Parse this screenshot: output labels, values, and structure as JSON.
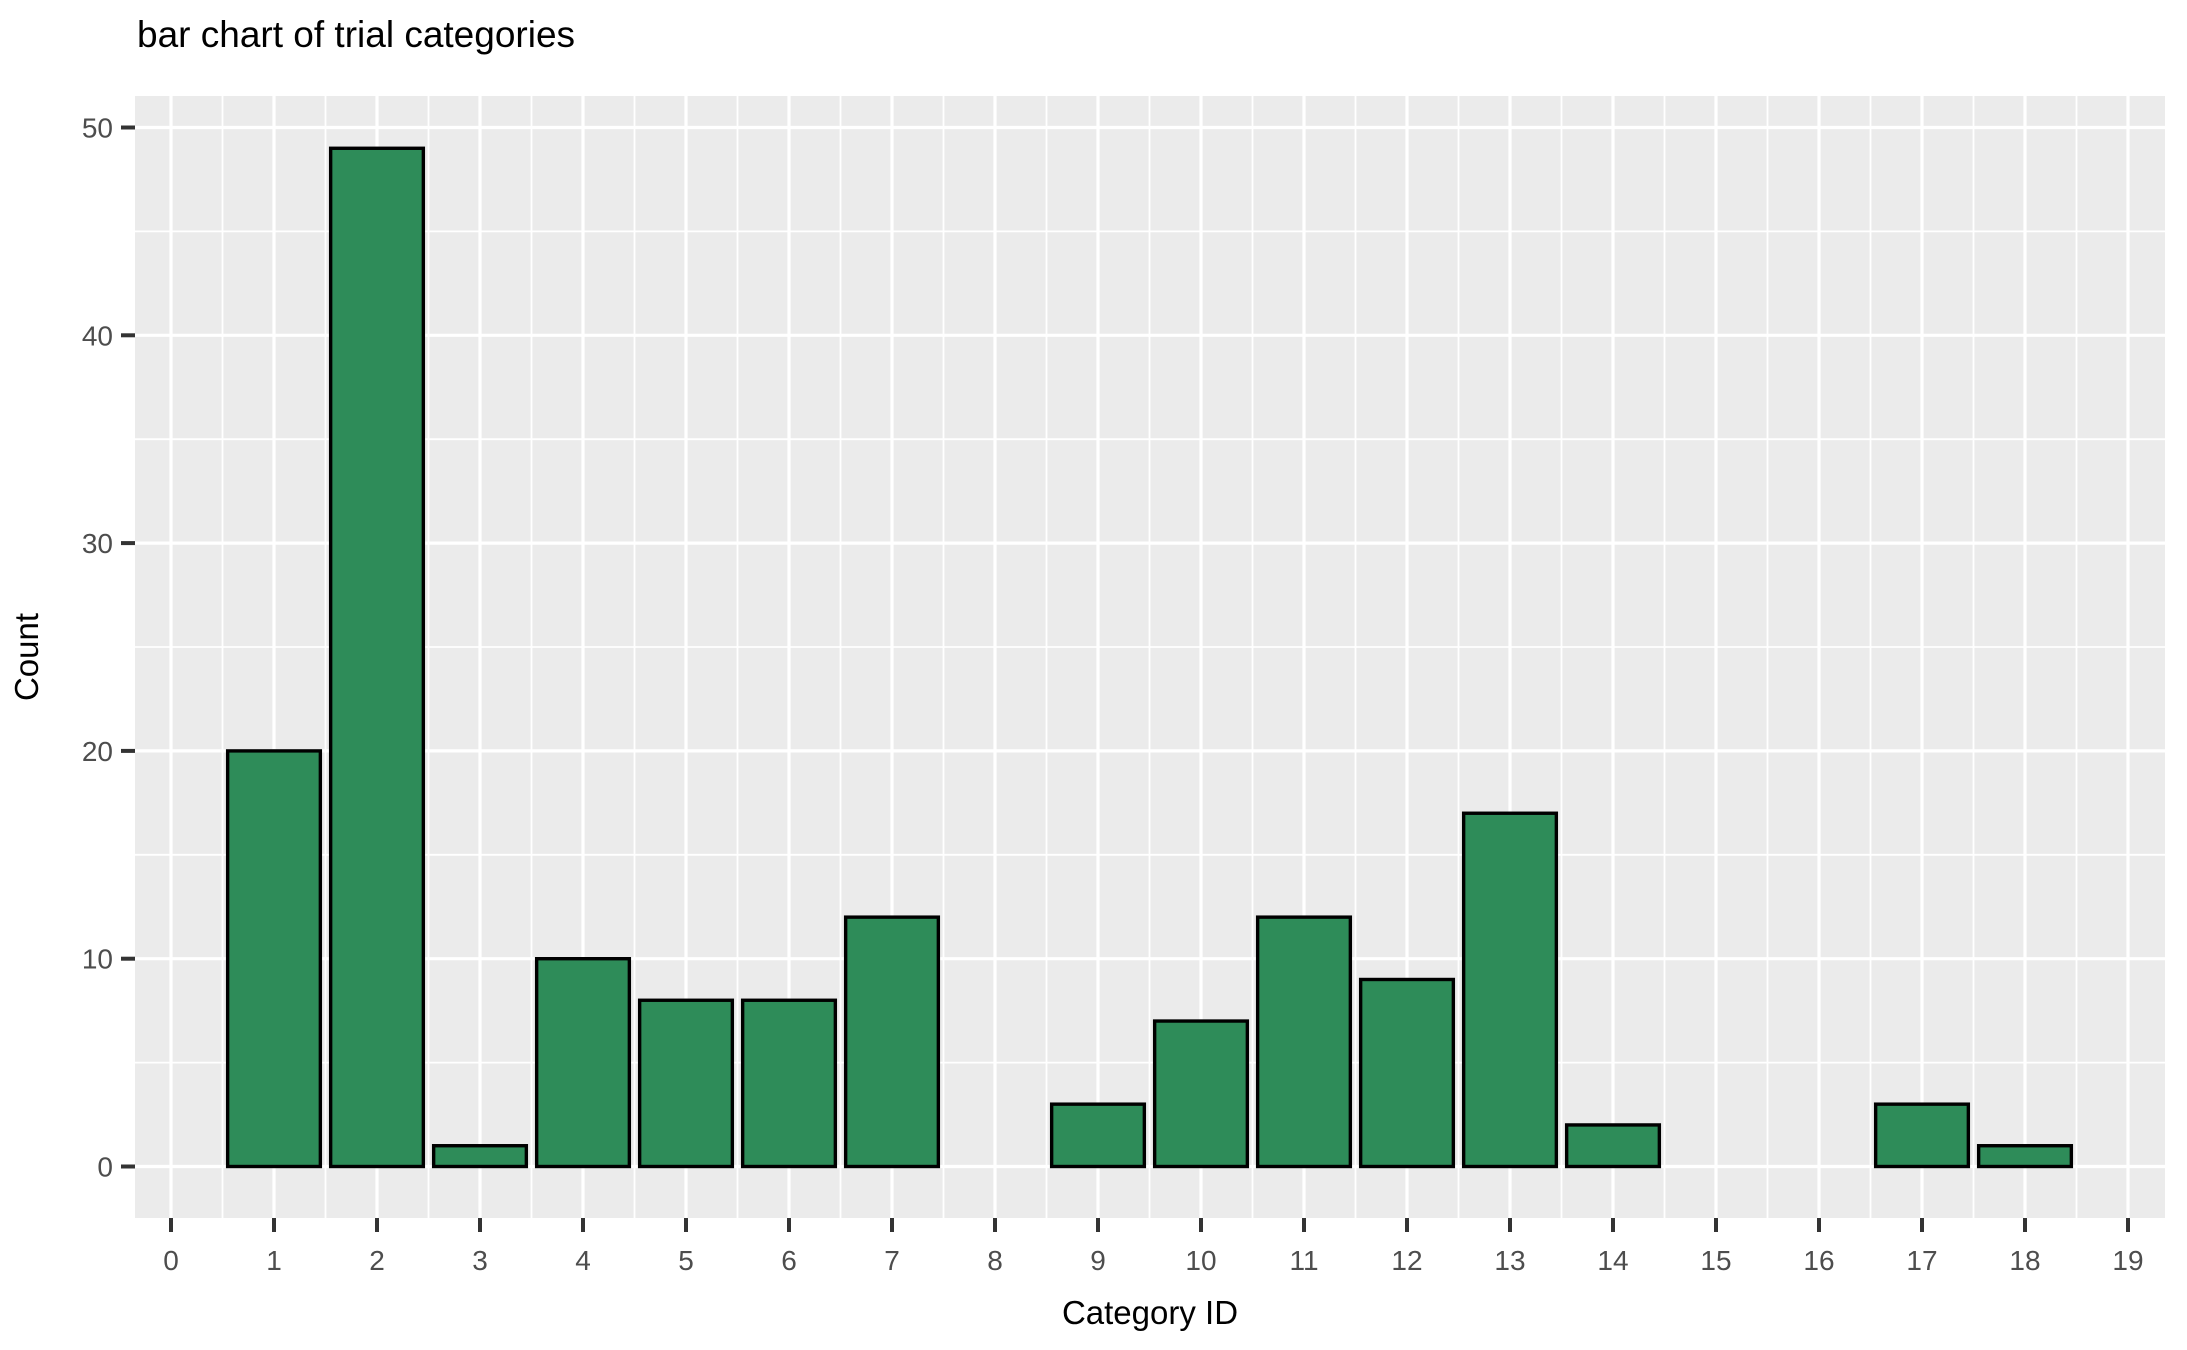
{
  "chart_data": {
    "type": "bar",
    "title": "bar chart of trial categories",
    "xlabel": "Category ID",
    "ylabel": "Count",
    "categories": [
      0,
      1,
      2,
      3,
      4,
      5,
      6,
      7,
      8,
      9,
      10,
      11,
      12,
      13,
      14,
      15,
      16,
      17,
      18,
      19
    ],
    "values": [
      0,
      20,
      49,
      1,
      10,
      8,
      8,
      12,
      0,
      3,
      7,
      12,
      9,
      17,
      2,
      0,
      0,
      3,
      1,
      0
    ],
    "x_ticks": [
      0,
      1,
      2,
      3,
      4,
      5,
      6,
      7,
      8,
      9,
      10,
      11,
      12,
      13,
      14,
      15,
      16,
      17,
      18,
      19
    ],
    "y_ticks": [
      0,
      10,
      20,
      30,
      40,
      50
    ],
    "y_minor_ticks": [
      5,
      15,
      25,
      35,
      45
    ],
    "ylim": [
      0,
      50
    ],
    "bar_width": 0.9,
    "grid": "major and minor white gridlines on",
    "legend": "none",
    "colors": {
      "bar_fill": "#2E8C59",
      "bar_stroke": "#000000",
      "panel_background": "#EBEBEB",
      "gridline": "#FFFFFF",
      "tick_label": "#4D4D4D",
      "tick_mark": "#333333",
      "title_text": "#000000",
      "page_background": "#FFFFFF"
    }
  }
}
